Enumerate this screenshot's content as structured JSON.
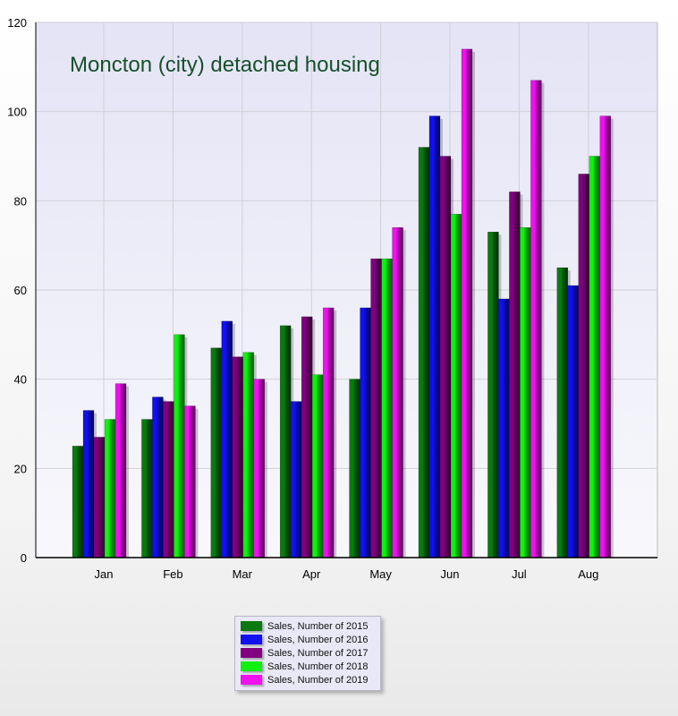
{
  "chart_data": {
    "type": "bar",
    "title": "Moncton (city) detached housing",
    "xlabel": "",
    "ylabel": "",
    "ylim": [
      0,
      120
    ],
    "yticks": [
      0,
      20,
      40,
      60,
      80,
      100,
      120
    ],
    "grid": true,
    "legend_position": "bottom",
    "categories": [
      "Jan",
      "Feb",
      "Mar",
      "Apr",
      "May",
      "Jun",
      "Jul",
      "Aug"
    ],
    "series": [
      {
        "name": "Sales, Number of 2015",
        "color": "#0a7a10",
        "values": [
          25,
          31,
          47,
          52,
          40,
          92,
          73,
          65
        ]
      },
      {
        "name": "Sales, Number of 2016",
        "color": "#1010f0",
        "values": [
          33,
          36,
          53,
          35,
          56,
          99,
          58,
          61
        ]
      },
      {
        "name": "Sales, Number of 2017",
        "color": "#800080",
        "values": [
          27,
          35,
          45,
          54,
          67,
          90,
          82,
          86
        ]
      },
      {
        "name": "Sales, Number of 2018",
        "color": "#10f010",
        "values": [
          31,
          50,
          46,
          41,
          67,
          77,
          74,
          90
        ]
      },
      {
        "name": "Sales, Number of 2019",
        "color": "#f010f0",
        "values": [
          39,
          34,
          40,
          56,
          74,
          114,
          107,
          99
        ]
      }
    ]
  }
}
